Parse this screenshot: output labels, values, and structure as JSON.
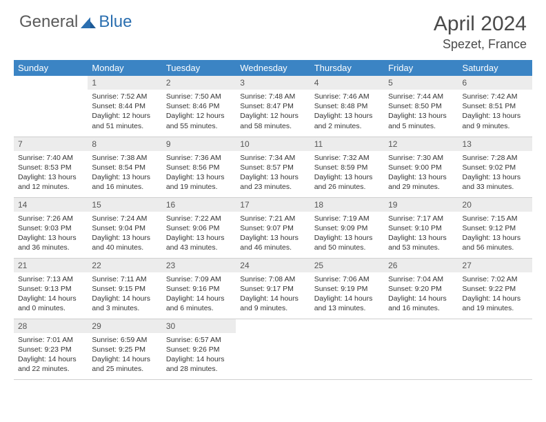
{
  "logo": {
    "general": "General",
    "blue": "Blue"
  },
  "title": {
    "month": "April 2024",
    "location": "Spezet, France"
  },
  "colors": {
    "header_bg": "#3b84c4",
    "header_text": "#ffffff",
    "daynum_bg": "#ececec",
    "border": "#cfcfcf",
    "logo_blue": "#2b6fb0",
    "logo_gray": "#5a5a5a"
  },
  "weekdays": [
    "Sunday",
    "Monday",
    "Tuesday",
    "Wednesday",
    "Thursday",
    "Friday",
    "Saturday"
  ],
  "weeks": [
    [
      null,
      {
        "n": "1",
        "sr": "7:52 AM",
        "ss": "8:44 PM",
        "dl": "12 hours and 51 minutes."
      },
      {
        "n": "2",
        "sr": "7:50 AM",
        "ss": "8:46 PM",
        "dl": "12 hours and 55 minutes."
      },
      {
        "n": "3",
        "sr": "7:48 AM",
        "ss": "8:47 PM",
        "dl": "12 hours and 58 minutes."
      },
      {
        "n": "4",
        "sr": "7:46 AM",
        "ss": "8:48 PM",
        "dl": "13 hours and 2 minutes."
      },
      {
        "n": "5",
        "sr": "7:44 AM",
        "ss": "8:50 PM",
        "dl": "13 hours and 5 minutes."
      },
      {
        "n": "6",
        "sr": "7:42 AM",
        "ss": "8:51 PM",
        "dl": "13 hours and 9 minutes."
      }
    ],
    [
      {
        "n": "7",
        "sr": "7:40 AM",
        "ss": "8:53 PM",
        "dl": "13 hours and 12 minutes."
      },
      {
        "n": "8",
        "sr": "7:38 AM",
        "ss": "8:54 PM",
        "dl": "13 hours and 16 minutes."
      },
      {
        "n": "9",
        "sr": "7:36 AM",
        "ss": "8:56 PM",
        "dl": "13 hours and 19 minutes."
      },
      {
        "n": "10",
        "sr": "7:34 AM",
        "ss": "8:57 PM",
        "dl": "13 hours and 23 minutes."
      },
      {
        "n": "11",
        "sr": "7:32 AM",
        "ss": "8:59 PM",
        "dl": "13 hours and 26 minutes."
      },
      {
        "n": "12",
        "sr": "7:30 AM",
        "ss": "9:00 PM",
        "dl": "13 hours and 29 minutes."
      },
      {
        "n": "13",
        "sr": "7:28 AM",
        "ss": "9:02 PM",
        "dl": "13 hours and 33 minutes."
      }
    ],
    [
      {
        "n": "14",
        "sr": "7:26 AM",
        "ss": "9:03 PM",
        "dl": "13 hours and 36 minutes."
      },
      {
        "n": "15",
        "sr": "7:24 AM",
        "ss": "9:04 PM",
        "dl": "13 hours and 40 minutes."
      },
      {
        "n": "16",
        "sr": "7:22 AM",
        "ss": "9:06 PM",
        "dl": "13 hours and 43 minutes."
      },
      {
        "n": "17",
        "sr": "7:21 AM",
        "ss": "9:07 PM",
        "dl": "13 hours and 46 minutes."
      },
      {
        "n": "18",
        "sr": "7:19 AM",
        "ss": "9:09 PM",
        "dl": "13 hours and 50 minutes."
      },
      {
        "n": "19",
        "sr": "7:17 AM",
        "ss": "9:10 PM",
        "dl": "13 hours and 53 minutes."
      },
      {
        "n": "20",
        "sr": "7:15 AM",
        "ss": "9:12 PM",
        "dl": "13 hours and 56 minutes."
      }
    ],
    [
      {
        "n": "21",
        "sr": "7:13 AM",
        "ss": "9:13 PM",
        "dl": "14 hours and 0 minutes."
      },
      {
        "n": "22",
        "sr": "7:11 AM",
        "ss": "9:15 PM",
        "dl": "14 hours and 3 minutes."
      },
      {
        "n": "23",
        "sr": "7:09 AM",
        "ss": "9:16 PM",
        "dl": "14 hours and 6 minutes."
      },
      {
        "n": "24",
        "sr": "7:08 AM",
        "ss": "9:17 PM",
        "dl": "14 hours and 9 minutes."
      },
      {
        "n": "25",
        "sr": "7:06 AM",
        "ss": "9:19 PM",
        "dl": "14 hours and 13 minutes."
      },
      {
        "n": "26",
        "sr": "7:04 AM",
        "ss": "9:20 PM",
        "dl": "14 hours and 16 minutes."
      },
      {
        "n": "27",
        "sr": "7:02 AM",
        "ss": "9:22 PM",
        "dl": "14 hours and 19 minutes."
      }
    ],
    [
      {
        "n": "28",
        "sr": "7:01 AM",
        "ss": "9:23 PM",
        "dl": "14 hours and 22 minutes."
      },
      {
        "n": "29",
        "sr": "6:59 AM",
        "ss": "9:25 PM",
        "dl": "14 hours and 25 minutes."
      },
      {
        "n": "30",
        "sr": "6:57 AM",
        "ss": "9:26 PM",
        "dl": "14 hours and 28 minutes."
      },
      null,
      null,
      null,
      null
    ]
  ],
  "labels": {
    "sunrise": "Sunrise:",
    "sunset": "Sunset:",
    "daylight": "Daylight:"
  }
}
